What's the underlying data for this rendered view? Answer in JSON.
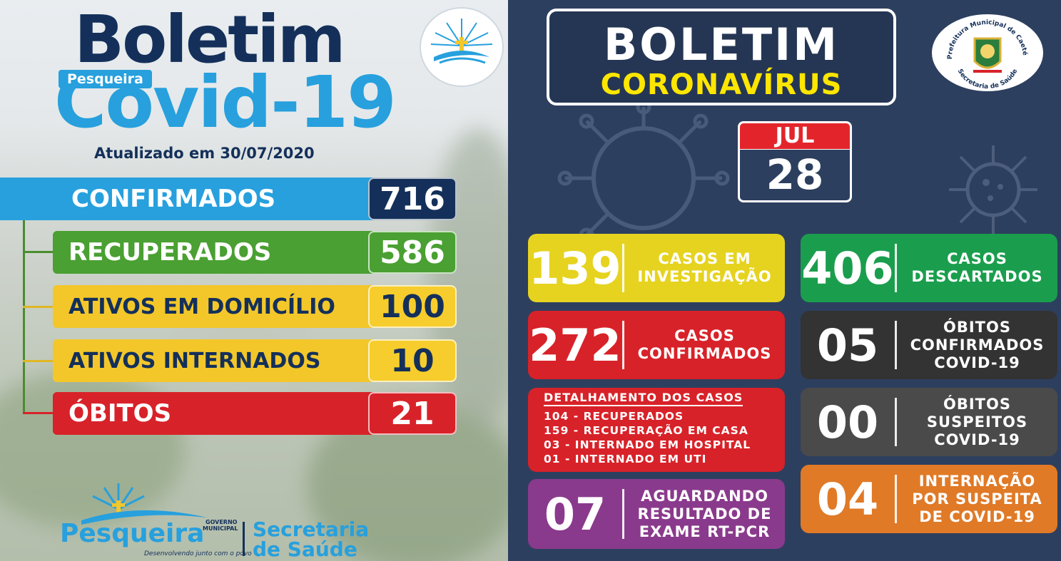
{
  "left": {
    "title_boletim": "Boletim",
    "title_covid": "Covid-19",
    "tag": "Pesqueira",
    "updated": "Atualizado em 30/07/2020",
    "stats": [
      {
        "label": "CONFIRMADOS",
        "value": "716",
        "color": "#27a0dd",
        "num_bg": "#14305a",
        "text_color": "#ffffff"
      },
      {
        "label": "RECUPERADOS",
        "value": "586",
        "color": "#4aa032",
        "num_bg": "#4aa032",
        "text_color": "#ffffff"
      },
      {
        "label": "ATIVOS EM DOMICÍLIO",
        "value": "100",
        "color": "#f3c72a",
        "num_bg": "#f6cd2c",
        "text_color": "#14305a"
      },
      {
        "label": "ATIVOS INTERNADOS",
        "value": "10",
        "color": "#f3c72a",
        "num_bg": "#f6cd2c",
        "text_color": "#14305a"
      },
      {
        "label": "ÓBITOS",
        "value": "21",
        "color": "#d82229",
        "num_bg": "#d82229",
        "text_color": "#ffffff"
      }
    ],
    "footer": {
      "brand": "Pesqueira",
      "gov_line1": "GOVERNO",
      "gov_line2": "MUNICIPAL",
      "slogan": "Desenvolvendo junto com o povo",
      "secretaria_line1": "Secretaria",
      "secretaria_line2": "de Saúde"
    }
  },
  "right": {
    "title_boletim": "BOLETIM",
    "title_corona": "CORONAVÍRUS",
    "seal_top": "Prefeitura Municipal de Caetés",
    "seal_bottom": "Secretaria de Saúde",
    "date_month": "JUL",
    "date_day": "28",
    "cards": [
      {
        "num": "139",
        "desc": [
          "CASOS EM",
          "INVESTIGAÇÃO"
        ],
        "color": "#e6d31f"
      },
      {
        "num": "406",
        "desc": [
          "CASOS",
          "DESCARTADOS"
        ],
        "color": "#1a9e4d"
      },
      {
        "num": "272",
        "desc": [
          "CASOS",
          "CONFIRMADOS"
        ],
        "color": "#d82229"
      },
      {
        "num": "05",
        "desc": [
          "ÓBITOS",
          "CONFIRMADOS",
          "COVID-19"
        ],
        "color": "#333333"
      },
      {
        "num": "00",
        "desc": [
          "ÓBITOS",
          "SUSPEITOS",
          "COVID-19"
        ],
        "color": "#4a4a4a"
      },
      {
        "num": "07",
        "desc": [
          "AGUARDANDO",
          "RESULTADO DE",
          "EXAME RT-PCR"
        ],
        "color": "#8a3a8c"
      },
      {
        "num": "04",
        "desc": [
          "INTERNAÇÃO",
          "POR SUSPEITA",
          "DE COVID-19"
        ],
        "color": "#e07a27"
      }
    ],
    "detail": {
      "title": "DETALHAMENTO DOS CASOS",
      "lines": [
        "104 - RECUPERADOS",
        "159 - RECUPERAÇÃO EM CASA",
        "03 - INTERNADO EM HOSPITAL",
        "01 - INTERNADO EM UTI"
      ]
    }
  }
}
